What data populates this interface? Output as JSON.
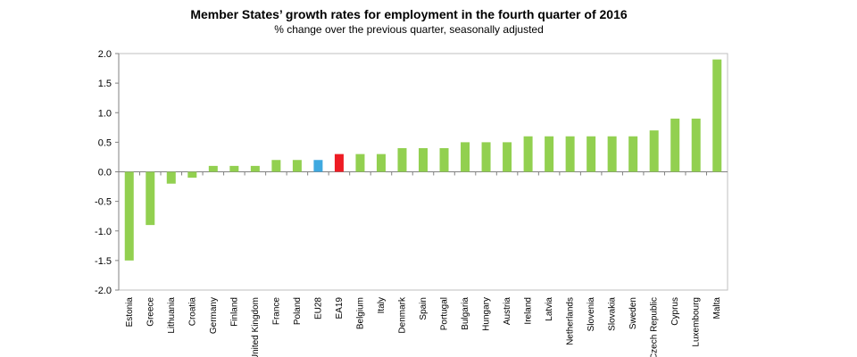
{
  "chart_data": {
    "type": "bar",
    "title": "Member States’ growth rates for employment in the fourth quarter of 2016",
    "subtitle": "% change over the previous quarter, seasonally adjusted",
    "categories": [
      "Estonia",
      "Greece",
      "Lithuania",
      "Croatia",
      "Germany",
      "Finland",
      "United Kingdom",
      "France",
      "Poland",
      "EU28",
      "EA19",
      "Belgium",
      "Italy",
      "Denmark",
      "Spain",
      "Portugal",
      "Bulgaria",
      "Hungary",
      "Austria",
      "Ireland",
      "Latvia",
      "Netherlands",
      "Slovenia",
      "Slovakia",
      "Sweden",
      "Czech Republic",
      "Cyprus",
      "Luxembourg",
      "Malta"
    ],
    "values": [
      -1.5,
      -0.9,
      -0.2,
      -0.1,
      0.1,
      0.1,
      0.1,
      0.2,
      0.2,
      0.2,
      0.3,
      0.3,
      0.3,
      0.4,
      0.4,
      0.4,
      0.5,
      0.5,
      0.5,
      0.6,
      0.6,
      0.6,
      0.6,
      0.6,
      0.6,
      0.7,
      0.9,
      0.9,
      1.9
    ],
    "ylim": [
      -2.0,
      2.0
    ],
    "yticks": [
      "2.0",
      "1.5",
      "1.0",
      "0.5",
      "0.0",
      "-0.5",
      "-1.0",
      "-1.5",
      "-2.0"
    ],
    "colors": {
      "default": "#92d050",
      "EU28": "#3fa9e0",
      "EA19": "#ee1c24"
    },
    "grid": false,
    "legend": "none"
  }
}
